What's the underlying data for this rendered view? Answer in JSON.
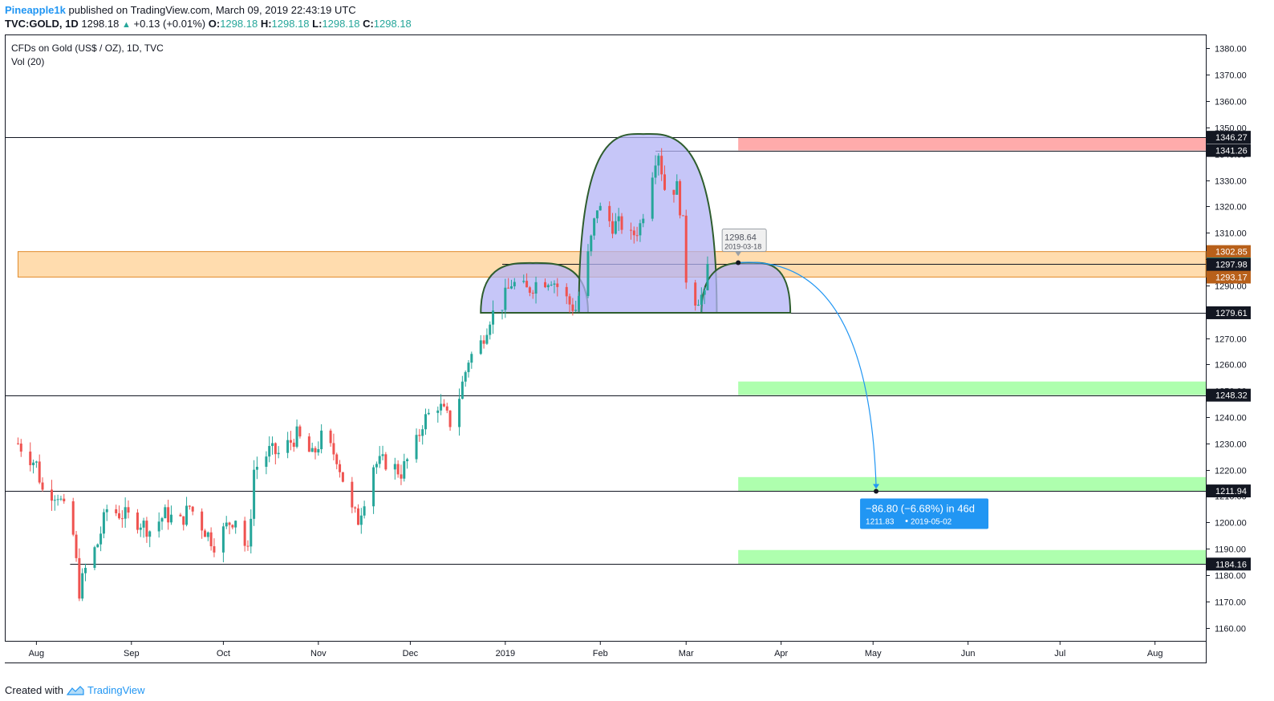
{
  "header": {
    "user": "Pineapple1k",
    "published": "published on TradingView.com, March 09, 2019 22:43:19 UTC",
    "symbol": "TVC:GOLD, 1D",
    "last": "1298.18",
    "change": "+0.13 (+0.01%)",
    "o_label": "O:",
    "o_val": "1298.18",
    "h_label": "H:",
    "h_val": "1298.18",
    "l_label": "L:",
    "l_val": "1298.18",
    "c_label": "C:",
    "c_val": "1298.18"
  },
  "legend": {
    "title": "CFDs on Gold (US$ / OZ), 1D, TVC",
    "volume": "Vol (20)"
  },
  "footer": {
    "created": "Created with",
    "brand": "TradingView"
  },
  "colors": {
    "up": "#26a69a",
    "down": "#ef5350",
    "pattern_fill": "#b3b3f5",
    "pattern_stroke": "#2e5d2e",
    "resistance_zone": "#ffa6a6",
    "support_zone": "#aaffaa",
    "key_zone": "#ffd6a0",
    "projection": "#2196f3"
  },
  "chart_data": {
    "type": "candlestick",
    "ylim": [
      1155,
      1385
    ],
    "y_ticks": [
      1160,
      1170,
      1180,
      1190,
      1200,
      1210,
      1220,
      1230,
      1240,
      1250,
      1260,
      1270,
      1280,
      1290,
      1300,
      1310,
      1320,
      1330,
      1340,
      1350,
      1360,
      1370,
      1380
    ],
    "y_tick_labels": [
      "1160.00",
      "1170.00",
      "1180.00",
      "1190.00",
      "1200.00",
      "1210.00",
      "1220.00",
      "1230.00",
      "1240.00",
      "1250.00",
      "1260.00",
      "1270.00",
      "1280.00",
      "1290.00",
      "1300.00",
      "1310.00",
      "1320.00",
      "1330.00",
      "1340.00",
      "1350.00",
      "1360.00",
      "1370.00",
      "1380.00"
    ],
    "x_labels": [
      {
        "label": "Aug",
        "date": "2018-08-01"
      },
      {
        "label": "Sep",
        "date": "2018-09-01"
      },
      {
        "label": "Oct",
        "date": "2018-10-01"
      },
      {
        "label": "Nov",
        "date": "2018-11-01"
      },
      {
        "label": "Dec",
        "date": "2018-12-01"
      },
      {
        "label": "2019",
        "date": "2019-01-01"
      },
      {
        "label": "Feb",
        "date": "2019-02-01"
      },
      {
        "label": "Mar",
        "date": "2019-03-01"
      },
      {
        "label": "Apr",
        "date": "2019-04-01"
      },
      {
        "label": "May",
        "date": "2019-05-01"
      },
      {
        "label": "Jun",
        "date": "2019-06-01"
      },
      {
        "label": "Jul",
        "date": "2019-07-01"
      },
      {
        "label": "Aug",
        "date": "2019-08-01"
      }
    ],
    "price_path": [
      [
        "2018-07-26",
        1230
      ],
      [
        "2018-08-01",
        1222
      ],
      [
        "2018-08-03",
        1212
      ],
      [
        "2018-08-08",
        1211
      ],
      [
        "2018-08-13",
        1195
      ],
      [
        "2018-08-15",
        1174
      ],
      [
        "2018-08-17",
        1182
      ],
      [
        "2018-08-21",
        1192
      ],
      [
        "2018-08-24",
        1205
      ],
      [
        "2018-08-29",
        1203
      ],
      [
        "2018-09-04",
        1200
      ],
      [
        "2018-09-07",
        1197
      ],
      [
        "2018-09-12",
        1203
      ],
      [
        "2018-09-17",
        1200
      ],
      [
        "2018-09-20",
        1206
      ],
      [
        "2018-09-25",
        1197
      ],
      [
        "2018-09-28",
        1192
      ],
      [
        "2018-10-03",
        1200
      ],
      [
        "2018-10-05",
        1202
      ],
      [
        "2018-10-09",
        1188
      ],
      [
        "2018-10-11",
        1220
      ],
      [
        "2018-10-16",
        1227
      ],
      [
        "2018-10-19",
        1226
      ],
      [
        "2018-10-25",
        1233
      ],
      [
        "2018-10-30",
        1225
      ],
      [
        "2018-11-02",
        1232
      ],
      [
        "2018-11-07",
        1225
      ],
      [
        "2018-11-12",
        1204
      ],
      [
        "2018-11-14",
        1201
      ],
      [
        "2018-11-19",
        1222
      ],
      [
        "2018-11-23",
        1223
      ],
      [
        "2018-11-28",
        1219
      ],
      [
        "2018-12-03",
        1230
      ],
      [
        "2018-12-05",
        1238
      ],
      [
        "2018-12-10",
        1245
      ],
      [
        "2018-12-14",
        1238
      ],
      [
        "2018-12-17",
        1248
      ],
      [
        "2018-12-20",
        1262
      ],
      [
        "2018-12-24",
        1268
      ],
      [
        "2018-12-27",
        1278
      ],
      [
        "2018-12-31",
        1283
      ],
      [
        "2019-01-03",
        1291
      ],
      [
        "2019-01-08",
        1288
      ],
      [
        "2019-01-11",
        1291
      ],
      [
        "2019-01-16",
        1293
      ],
      [
        "2019-01-22",
        1283
      ],
      [
        "2019-01-24",
        1281
      ],
      [
        "2019-01-28",
        1301
      ],
      [
        "2019-01-31",
        1320
      ],
      [
        "2019-02-05",
        1313
      ],
      [
        "2019-02-08",
        1313
      ],
      [
        "2019-02-11",
        1308
      ],
      [
        "2019-02-14",
        1313
      ],
      [
        "2019-02-19",
        1339
      ],
      [
        "2019-02-20",
        1341
      ],
      [
        "2019-02-22",
        1327
      ],
      [
        "2019-02-26",
        1327
      ],
      [
        "2019-02-28",
        1313
      ],
      [
        "2019-03-01",
        1293
      ],
      [
        "2019-03-04",
        1285
      ],
      [
        "2019-03-06",
        1286
      ],
      [
        "2019-03-07",
        1285
      ],
      [
        "2019-03-08",
        1298.18
      ]
    ],
    "horizontal_lines": [
      {
        "label": "1346.27",
        "value": 1346.27,
        "bg": "#131722"
      },
      {
        "label": "1341.26",
        "value": 1341.26,
        "bg": "#131722"
      },
      {
        "label": "1298.18",
        "value": 1298.18,
        "bg": "#26a69a"
      },
      {
        "label": "1297.98",
        "value": 1297.98,
        "bg": "#131722"
      },
      {
        "label": "1279.61",
        "value": 1279.61,
        "bg": "#131722"
      },
      {
        "label": "1248.32",
        "value": 1248.32,
        "bg": "#131722"
      },
      {
        "label": "1211.94",
        "value": 1211.94,
        "bg": "#131722"
      },
      {
        "label": "1184.16",
        "value": 1184.16,
        "bg": "#131722"
      }
    ],
    "zone_labels": [
      {
        "label": "1302.85",
        "value": 1302.85,
        "bg": "#b8601a"
      },
      {
        "label": "1293.17",
        "value": 1293.17,
        "bg": "#b8601a"
      }
    ],
    "zones": [
      {
        "name": "key-zone",
        "from": 1293.17,
        "to": 1302.85,
        "start": "2018-07-26"
      },
      {
        "name": "resistance-zone",
        "from": 1341.26,
        "to": 1346.27,
        "start": "2019-03-18"
      },
      {
        "name": "support-zone-1",
        "from": 1248.32,
        "to": 1253.5,
        "start": "2019-03-18"
      },
      {
        "name": "support-zone-2",
        "from": 1211.94,
        "to": 1217.2,
        "start": "2019-03-18"
      },
      {
        "name": "support-zone-3",
        "from": 1184.16,
        "to": 1189.5,
        "start": "2019-03-18"
      }
    ],
    "pattern": {
      "neckline": 1279.61,
      "left_shoulder": {
        "start": "2018-12-24",
        "peak_date": "2019-01-10",
        "peak": 1298.5,
        "end": "2019-01-28"
      },
      "head": {
        "start": "2019-01-25",
        "peak_date": "2019-02-15",
        "peak": 1347.5,
        "end": "2019-03-11"
      },
      "right_shoulder": {
        "start": "2019-03-06",
        "peak_date": "2019-03-22",
        "peak": 1298.64,
        "end": "2019-04-04"
      }
    },
    "shoulder_tooltip": {
      "price": "1298.64",
      "date": "2019-03-18"
    },
    "projection": {
      "from": {
        "date": "2019-03-18",
        "value": 1298.64
      },
      "to": {
        "date": "2019-05-02",
        "value": 1211.83
      },
      "label": "−86.80 (−6.68%) in 46d",
      "sub_price": "1211.83",
      "sub_date": "2019-05-02"
    }
  }
}
